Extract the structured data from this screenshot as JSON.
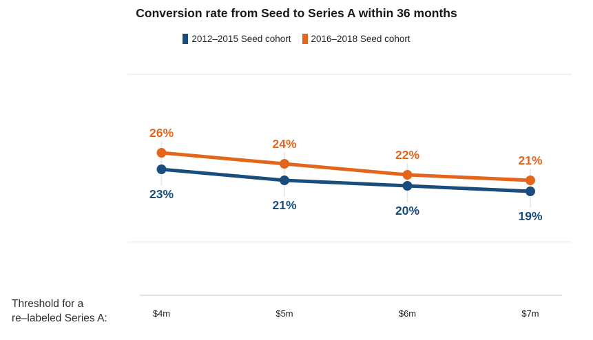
{
  "chart_data": {
    "type": "line",
    "title": "Conversion rate from Seed to Series A within 36 months",
    "categories": [
      "$4m",
      "$5m",
      "$6m",
      "$7m"
    ],
    "series": [
      {
        "name": "2012–2015 Seed cohort",
        "color": "#1A4D7B",
        "values": [
          23,
          21,
          20,
          19
        ],
        "labels": [
          "23%",
          "21%",
          "20%",
          "19%"
        ]
      },
      {
        "name": "2016–2018 Seed cohort",
        "color": "#E2671C",
        "values": [
          26,
          24,
          22,
          21
        ],
        "labels": [
          "26%",
          "24%",
          "22%",
          "21%"
        ]
      }
    ],
    "xlabel": "Threshold for a re–labeled Series A:",
    "ylabel": "",
    "unit": "%",
    "ylim": [
      0,
      40
    ],
    "legend_position": "top-center",
    "grid": "horizontal lines at top and lower area, light x-axis baseline, faint vertical label connectors at each point"
  },
  "axis_title": {
    "line1": "Threshold for a",
    "line2": "re–labeled Series A:"
  },
  "colors": {
    "series_blue": "#1A4D7B",
    "series_orange": "#E2671C",
    "title_text": "#191919",
    "tick_text": "#222222",
    "gridline": "#f2f2f2",
    "axis_line": "#dcdcdc",
    "connector": "#e4e4e4",
    "background": "#ffffff"
  }
}
